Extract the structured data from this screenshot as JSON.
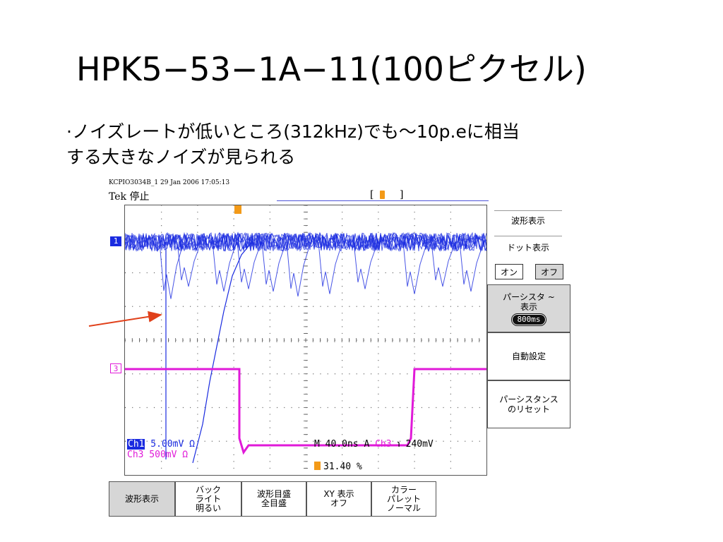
{
  "slide": {
    "title": "HPK5−53−1A−11(100ピクセル)",
    "bullets": [
      "·ノイズレートが低いところ(312kHz)でも〜10p.eに相当",
      "する大きなノイズが見られる"
    ]
  },
  "scope": {
    "header_meta": "KCPIO3034B_1   29 Jan 2006   17:05:13",
    "brand": "Tek 停止",
    "ch1_marker": "1",
    "ch3_marker": "3",
    "ch1_name": "Ch1",
    "ch1_scale": " 5.00mV Ω",
    "ch3_scale": "Ch3  500mV Ω",
    "timebase": "M 40.0ns  A ",
    "trigger_channel": "Ch3",
    "trigger_level": " ℩   240mV",
    "trigger_position": "31.40 %",
    "colors": {
      "ch1": "#1a2be0",
      "ch3": "#e01ad8",
      "trigger": "#f39a18"
    }
  },
  "side_menu": {
    "title": "波形表示",
    "subtitle": "ドット表示",
    "toggle_on": "オン",
    "toggle_off": "オフ",
    "persistence_line1": "パーシスタ ~",
    "persistence_line2": "表示",
    "persistence_value": "800ms",
    "auto_setup": "自動設定",
    "reset_line1": "パーシスタンス",
    "reset_line2": "のリセット"
  },
  "bottom_menu": [
    {
      "line1": "波形表示",
      "line2": "",
      "line3": ""
    },
    {
      "line1": "バック",
      "line2": "ライト",
      "line3": "明るい"
    },
    {
      "line1": "波形目盛",
      "line2": "全目盛",
      "line3": ""
    },
    {
      "line1": "XY 表示",
      "line2": "オフ",
      "line3": ""
    },
    {
      "line1": "カラー",
      "line2": "パレット",
      "line3": "ノーマル"
    }
  ]
}
